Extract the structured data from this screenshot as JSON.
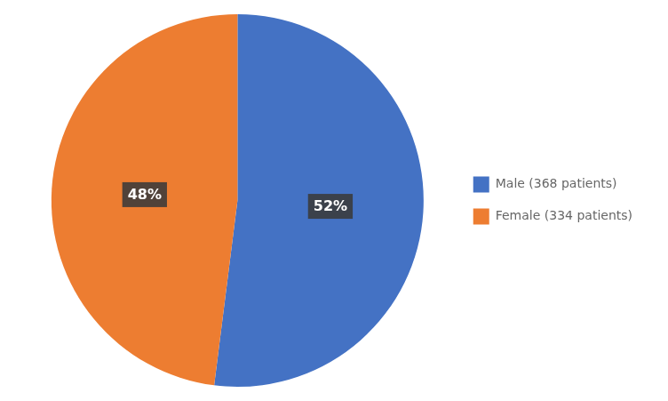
{
  "chart_data": {
    "type": "pie",
    "categories": [
      "Male (368 patients)",
      "Female (334 patients)"
    ],
    "values": [
      52,
      48
    ],
    "value_labels": [
      "52%",
      "48%"
    ],
    "colors": [
      "#4472C4",
      "#ED7D31"
    ],
    "data_labels": true,
    "legend": "right"
  }
}
